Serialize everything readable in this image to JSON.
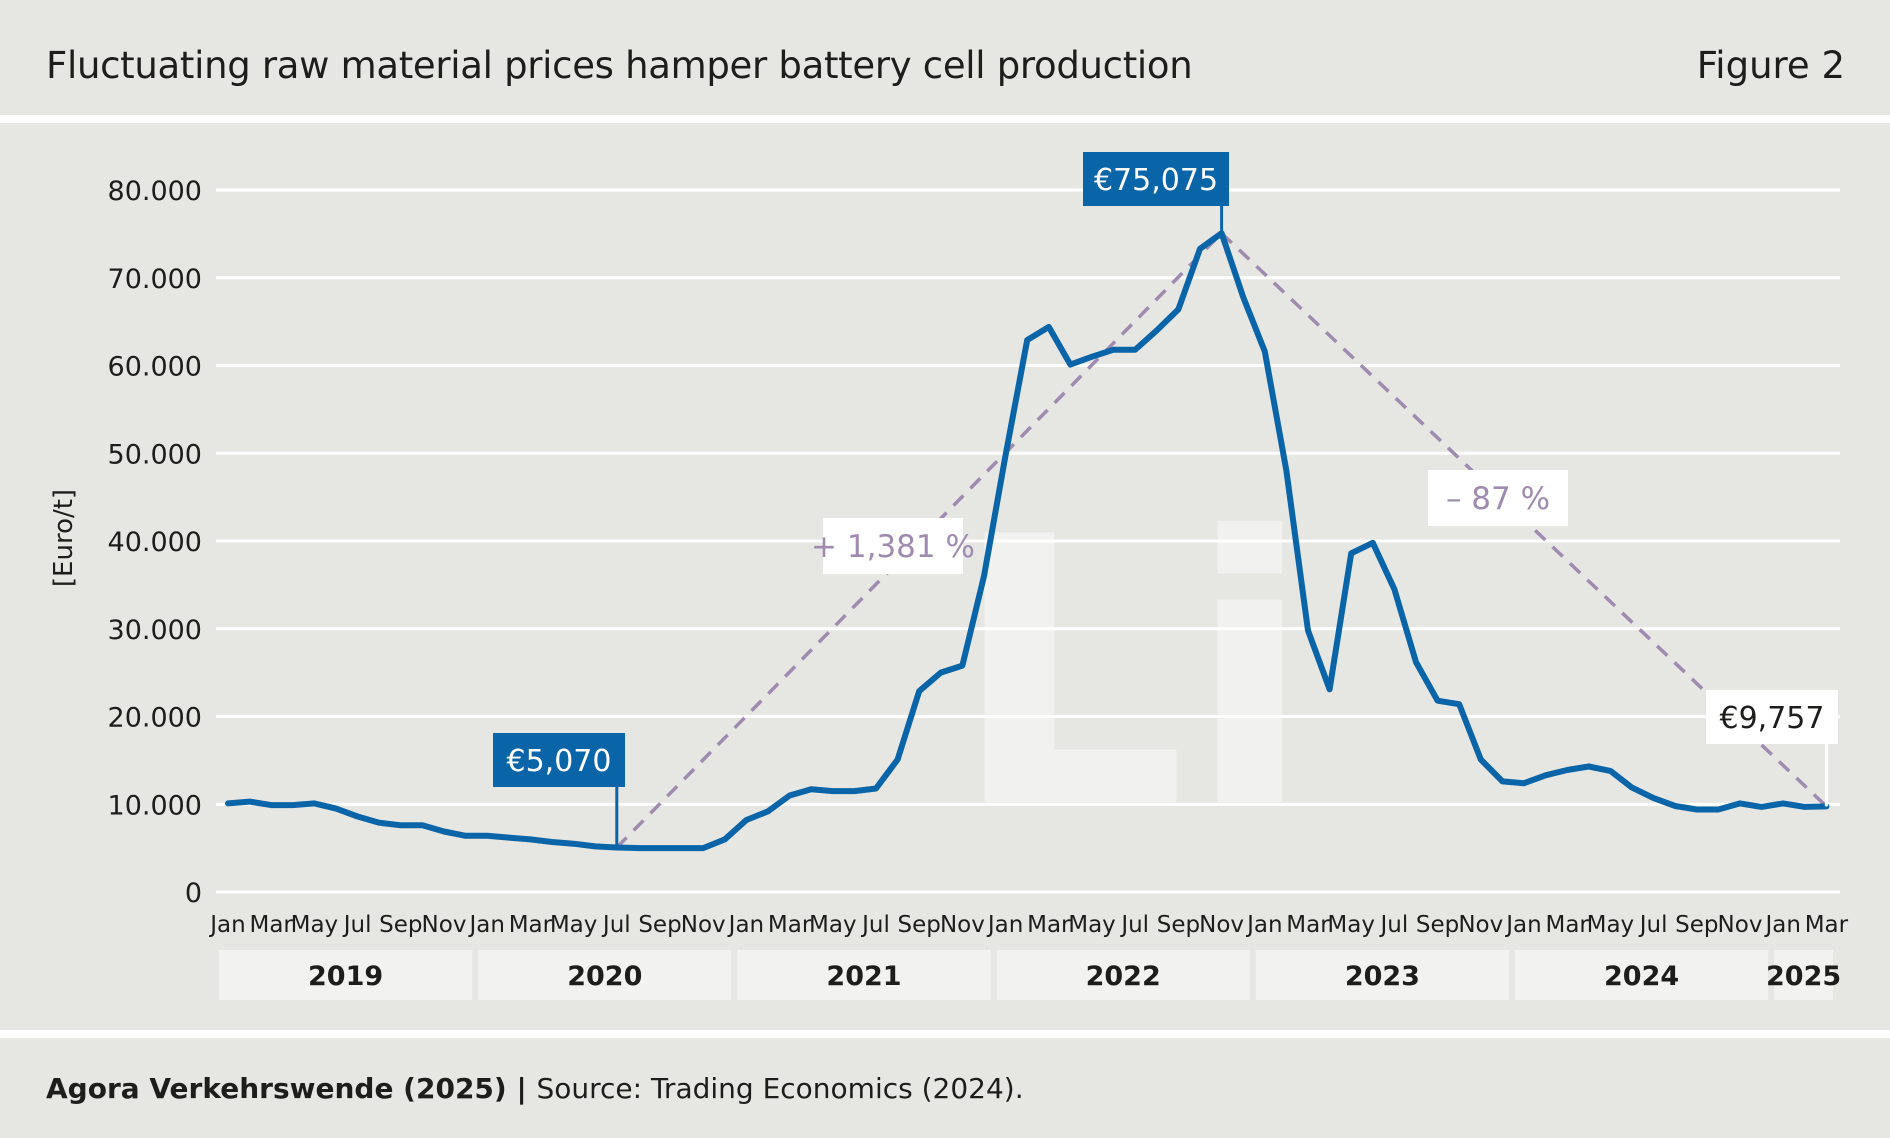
{
  "header": {
    "title": "Fluctuating raw material prices hamper battery cell production",
    "figure_label": "Figure 2"
  },
  "footer": {
    "credit": "Agora Verkehrswende (2025)",
    "separator": " | ",
    "source": "Source: Trading Economics (2024)."
  },
  "colors": {
    "background": "#e6e6e2",
    "series": "#0a64a8",
    "trend": "#9f8ab0",
    "gridline": "#ffffff",
    "year_band": "#f2f2f0",
    "watermark": "#f1f1ef"
  },
  "chart_data": {
    "type": "line",
    "title": "Fluctuating raw material prices hamper battery cell production",
    "ylabel": "[Euro/t]",
    "ylim": [
      0,
      80000
    ],
    "yticks": [
      0,
      10000,
      20000,
      30000,
      40000,
      50000,
      60000,
      70000,
      80000
    ],
    "ytick_labels": [
      "0",
      "10.000",
      "20.000",
      "30.000",
      "40.000",
      "50.000",
      "60.000",
      "70.000",
      "80.000"
    ],
    "xtick_labels": [
      "Jan",
      "Mar",
      "May",
      "Jul",
      "Sep",
      "Nov",
      "Jan",
      "Mar",
      "May",
      "Jul",
      "Sep",
      "Nov",
      "Jan",
      "Mar",
      "May",
      "Jul",
      "Sep",
      "Nov",
      "Jan",
      "Mar",
      "May",
      "Jul",
      "Sep",
      "Nov",
      "Jan",
      "Mar",
      "May",
      "Jul",
      "Sep",
      "Nov",
      "Jan",
      "Mar",
      "May",
      "Jul",
      "Sep",
      "Nov",
      "Jan",
      "Mar"
    ],
    "years": [
      "2019",
      "2020",
      "2021",
      "2022",
      "2023",
      "2024",
      "2025"
    ],
    "grid": true,
    "watermark": "Li",
    "series": [
      {
        "start": "2019-01",
        "values": [
          10100,
          10300,
          9900,
          9900,
          10100,
          9500,
          8600,
          7900,
          7600,
          7600,
          6900,
          6400,
          6400,
          6200,
          6000,
          5700,
          5500,
          5200,
          5070,
          5000,
          5000,
          5000,
          5000,
          6000,
          8200,
          9200,
          11000,
          11700,
          11500,
          11500,
          11800,
          15100,
          22900,
          25000,
          25800,
          36000,
          49800,
          62900,
          64400,
          60100,
          61000,
          61800,
          61800,
          64000,
          66400,
          73300,
          75075,
          67800,
          61600,
          48000,
          29800,
          23100,
          38600,
          39800,
          34500,
          26200,
          21800,
          21400,
          15100,
          12600,
          12400,
          13300,
          13900,
          14300,
          13800,
          11900,
          10700,
          9800,
          9400,
          9400,
          10100,
          9700,
          10100,
          9700,
          9757
        ]
      }
    ],
    "annotations": [
      {
        "text": "€5,070",
        "date": "2020-07",
        "value": 5070,
        "style": "blue-box"
      },
      {
        "text": "€75,075",
        "date": "2022-11",
        "value": 75075,
        "style": "blue-box"
      },
      {
        "text": "€9,757",
        "date": "2025-03",
        "value": 9757,
        "style": "white-box"
      }
    ],
    "trend_lines": [
      {
        "from_date": "2020-07",
        "from_value": 5070,
        "to_date": "2022-11",
        "to_value": 75075,
        "label": "+ 1,381 %"
      },
      {
        "from_date": "2022-11",
        "from_value": 75075,
        "to_date": "2025-03",
        "to_value": 9757,
        "label": "– 87 %"
      }
    ]
  }
}
